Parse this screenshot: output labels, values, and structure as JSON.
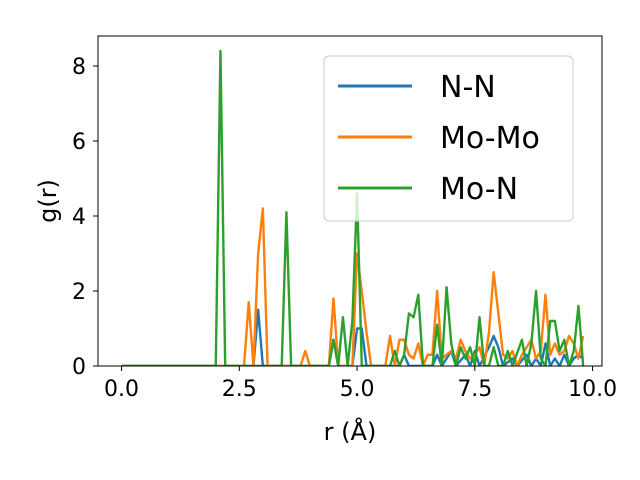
{
  "chart_data": {
    "type": "line",
    "xlabel": "r (Å)",
    "ylabel": "g(r)",
    "xlim": [
      -0.5,
      10.2
    ],
    "ylim": [
      0,
      8.8
    ],
    "xticks": [
      0.0,
      2.5,
      5.0,
      7.5,
      10.0
    ],
    "xtick_labels": [
      "0.0",
      "2.5",
      "5.0",
      "7.5",
      "10.0"
    ],
    "yticks": [
      0,
      2,
      4,
      6,
      8
    ],
    "ytick_labels": [
      "0",
      "2",
      "4",
      "6",
      "8"
    ],
    "grid": false,
    "legend_position": "top-right",
    "series": [
      {
        "name": "N-N",
        "color": "#1f77b4",
        "points": [
          [
            0.0,
            0
          ],
          [
            2.8,
            0
          ],
          [
            2.9,
            1.5
          ],
          [
            3.0,
            0
          ],
          [
            4.4,
            0
          ],
          [
            4.5,
            0.7
          ],
          [
            4.6,
            0
          ],
          [
            4.9,
            0
          ],
          [
            5.0,
            1.0
          ],
          [
            5.1,
            1.0
          ],
          [
            5.2,
            0
          ],
          [
            5.9,
            0
          ],
          [
            6.0,
            0.3
          ],
          [
            6.1,
            0
          ],
          [
            6.6,
            0
          ],
          [
            6.7,
            0.3
          ],
          [
            6.8,
            0
          ],
          [
            7.0,
            0.4
          ],
          [
            7.1,
            0
          ],
          [
            7.3,
            0.3
          ],
          [
            7.4,
            0
          ],
          [
            7.5,
            0.4
          ],
          [
            7.6,
            0
          ],
          [
            7.8,
            0.5
          ],
          [
            7.9,
            0.8
          ],
          [
            8.0,
            0.5
          ],
          [
            8.1,
            0
          ],
          [
            8.3,
            0.2
          ],
          [
            8.4,
            0
          ],
          [
            8.6,
            0.3
          ],
          [
            8.7,
            0
          ],
          [
            8.8,
            0.2
          ],
          [
            8.9,
            0
          ],
          [
            9.0,
            0.6
          ],
          [
            9.1,
            0
          ],
          [
            9.2,
            0.2
          ],
          [
            9.3,
            0
          ],
          [
            9.4,
            0.3
          ],
          [
            9.5,
            0
          ],
          [
            9.6,
            0.2
          ],
          [
            9.7,
            0.3
          ],
          [
            9.8,
            0.2
          ]
        ]
      },
      {
        "name": "Mo-Mo",
        "color": "#ff7f0e",
        "points": [
          [
            0.0,
            0
          ],
          [
            2.6,
            0
          ],
          [
            2.7,
            1.7
          ],
          [
            2.8,
            0
          ],
          [
            2.9,
            3.0
          ],
          [
            3.0,
            4.2
          ],
          [
            3.1,
            0
          ],
          [
            3.8,
            0
          ],
          [
            3.9,
            0.4
          ],
          [
            4.0,
            0
          ],
          [
            4.4,
            0
          ],
          [
            4.5,
            1.8
          ],
          [
            4.6,
            0
          ],
          [
            4.9,
            0
          ],
          [
            5.0,
            3.0
          ],
          [
            5.1,
            2.0
          ],
          [
            5.2,
            0.9
          ],
          [
            5.3,
            0
          ],
          [
            5.6,
            0
          ],
          [
            5.7,
            0.8
          ],
          [
            5.8,
            0
          ],
          [
            5.9,
            0.7
          ],
          [
            6.0,
            0.7
          ],
          [
            6.1,
            0.3
          ],
          [
            6.2,
            0.2
          ],
          [
            6.3,
            0.6
          ],
          [
            6.4,
            0
          ],
          [
            6.5,
            0.3
          ],
          [
            6.6,
            0.3
          ],
          [
            6.7,
            2.0
          ],
          [
            6.8,
            0.2
          ],
          [
            6.9,
            0.3
          ],
          [
            7.0,
            0.4
          ],
          [
            7.1,
            0.2
          ],
          [
            7.2,
            0.7
          ],
          [
            7.3,
            0.4
          ],
          [
            7.4,
            0.2
          ],
          [
            7.5,
            0.3
          ],
          [
            7.6,
            0.5
          ],
          [
            7.7,
            0
          ],
          [
            7.8,
            0.9
          ],
          [
            7.9,
            2.5
          ],
          [
            8.0,
            1.4
          ],
          [
            8.1,
            0.3
          ],
          [
            8.2,
            0.2
          ],
          [
            8.3,
            0.4
          ],
          [
            8.4,
            0
          ],
          [
            8.5,
            0.3
          ],
          [
            8.6,
            0.5
          ],
          [
            8.7,
            0.7
          ],
          [
            8.8,
            0.2
          ],
          [
            8.9,
            0.4
          ],
          [
            9.0,
            1.9
          ],
          [
            9.1,
            0.3
          ],
          [
            9.2,
            0.6
          ],
          [
            9.3,
            0.3
          ],
          [
            9.4,
            0.4
          ],
          [
            9.5,
            0.8
          ],
          [
            9.6,
            0.6
          ],
          [
            9.7,
            0.2
          ],
          [
            9.8,
            0.8
          ]
        ]
      },
      {
        "name": "Mo-N",
        "color": "#2ca02c",
        "points": [
          [
            0.0,
            0
          ],
          [
            2.0,
            0
          ],
          [
            2.1,
            8.4
          ],
          [
            2.2,
            0
          ],
          [
            3.4,
            0
          ],
          [
            3.5,
            4.1
          ],
          [
            3.6,
            0
          ],
          [
            4.4,
            0
          ],
          [
            4.5,
            0.7
          ],
          [
            4.6,
            0
          ],
          [
            4.7,
            1.3
          ],
          [
            4.8,
            0
          ],
          [
            4.9,
            1.2
          ],
          [
            5.0,
            4.6
          ],
          [
            5.1,
            0
          ],
          [
            5.7,
            0
          ],
          [
            5.8,
            0.4
          ],
          [
            5.9,
            0
          ],
          [
            6.0,
            0.3
          ],
          [
            6.1,
            1.4
          ],
          [
            6.2,
            1.3
          ],
          [
            6.3,
            1.9
          ],
          [
            6.4,
            0
          ],
          [
            6.6,
            0
          ],
          [
            6.7,
            1.1
          ],
          [
            6.8,
            0
          ],
          [
            6.9,
            2.1
          ],
          [
            7.0,
            0.6
          ],
          [
            7.1,
            0
          ],
          [
            7.2,
            0.5
          ],
          [
            7.3,
            0.2
          ],
          [
            7.4,
            0.5
          ],
          [
            7.5,
            0
          ],
          [
            7.6,
            1.3
          ],
          [
            7.7,
            0
          ],
          [
            7.8,
            0
          ],
          [
            7.9,
            0.5
          ],
          [
            8.0,
            0
          ],
          [
            8.1,
            0
          ],
          [
            8.2,
            0.4
          ],
          [
            8.3,
            0
          ],
          [
            8.5,
            0.7
          ],
          [
            8.6,
            0
          ],
          [
            8.7,
            0.6
          ],
          [
            8.8,
            2.0
          ],
          [
            8.9,
            0.2
          ],
          [
            9.0,
            0
          ],
          [
            9.1,
            1.2
          ],
          [
            9.2,
            1.2
          ],
          [
            9.3,
            0.4
          ],
          [
            9.4,
            0.7
          ],
          [
            9.5,
            0
          ],
          [
            9.6,
            0.4
          ],
          [
            9.7,
            1.6
          ],
          [
            9.8,
            0
          ]
        ]
      }
    ]
  }
}
